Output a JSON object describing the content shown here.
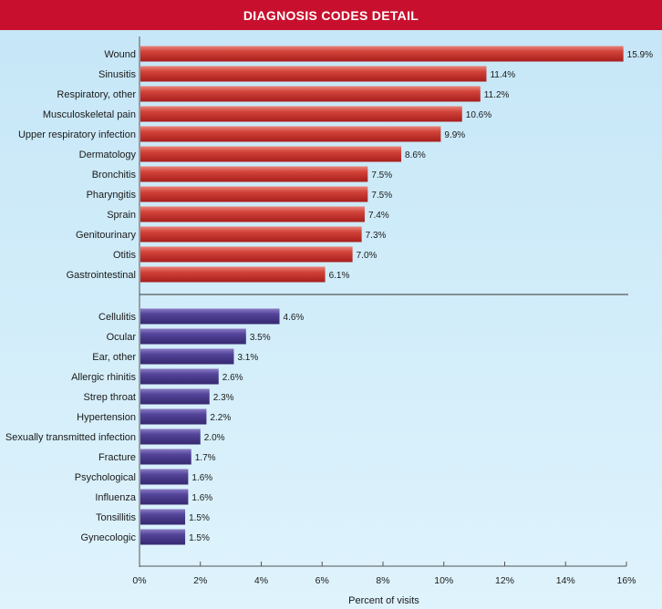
{
  "title": "DIAGNOSIS CODES DETAIL",
  "colors": {
    "title_bg": "#c8102e",
    "group1_bar": "#c8322e",
    "group2_bar": "#4b3a8c"
  },
  "chart_data": {
    "type": "bar",
    "orientation": "horizontal",
    "title": "DIAGNOSIS CODES DETAIL",
    "xlabel": "Percent of visits",
    "ylabel": "",
    "xlim": [
      0,
      16
    ],
    "xticks": [
      0,
      2,
      4,
      6,
      8,
      10,
      12,
      14,
      16
    ],
    "xtick_labels": [
      "0%",
      "2%",
      "4%",
      "6%",
      "8%",
      "10%",
      "12%",
      "14%",
      "16%"
    ],
    "grid": false,
    "groups": [
      {
        "color": "#c8322e",
        "categories": [
          "Wound",
          "Sinusitis",
          "Respiratory, other",
          "Musculoskeletal pain",
          "Upper respiratory infection",
          "Dermatology",
          "Bronchitis",
          "Pharyngitis",
          "Sprain",
          "Genitourinary",
          "Otitis",
          "Gastrointestinal"
        ],
        "values": [
          15.9,
          11.4,
          11.2,
          10.6,
          9.9,
          8.6,
          7.5,
          7.5,
          7.4,
          7.3,
          7.0,
          6.1
        ],
        "value_labels": [
          "15.9%",
          "11.4%",
          "11.2%",
          "10.6%",
          "9.9%",
          "8.6%",
          "7.5%",
          "7.5%",
          "7.4%",
          "7.3%",
          "7.0%",
          "6.1%"
        ]
      },
      {
        "color": "#4b3a8c",
        "categories": [
          "Cellulitis",
          "Ocular",
          "Ear, other",
          "Allergic rhinitis",
          "Strep throat",
          "Hypertension",
          "Sexually transmitted infection",
          "Fracture",
          "Psychological",
          "Influenza",
          "Tonsillitis",
          "Gynecologic"
        ],
        "values": [
          4.6,
          3.5,
          3.1,
          2.6,
          2.3,
          2.2,
          2.0,
          1.7,
          1.6,
          1.6,
          1.5,
          1.5
        ],
        "value_labels": [
          "4.6%",
          "3.5%",
          "3.1%",
          "2.6%",
          "2.3%",
          "2.2%",
          "2.0%",
          "1.7%",
          "1.6%",
          "1.6%",
          "1.5%",
          "1.5%"
        ]
      }
    ]
  }
}
